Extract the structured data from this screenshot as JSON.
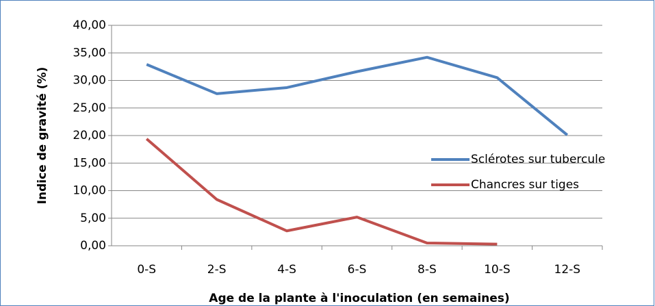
{
  "chart_data": {
    "type": "line",
    "x_label": "Age de la plante à l'inoculation (en semaines)",
    "y_label": "Indice de gravité (%)",
    "categories": [
      "0-S",
      "2-S",
      "4-S",
      "6-S",
      "8-S",
      "10-S",
      "12-S"
    ],
    "series": [
      {
        "name": "Sclérotes sur tubercule",
        "color": "#4f81bd",
        "values": [
          32.9,
          27.6,
          28.7,
          31.6,
          34.2,
          30.5,
          20.1
        ]
      },
      {
        "name": "Chancres sur tiges",
        "color": "#c0504d",
        "values": [
          19.4,
          8.4,
          2.7,
          5.2,
          0.5,
          0.3,
          null
        ]
      }
    ],
    "ylim": [
      0,
      40
    ],
    "yticks": [
      {
        "value": 0,
        "label": "0,00"
      },
      {
        "value": 5,
        "label": "5,00"
      },
      {
        "value": 10,
        "label": "10,00"
      },
      {
        "value": 15,
        "label": "15,00"
      },
      {
        "value": 20,
        "label": "20,00"
      },
      {
        "value": 25,
        "label": "25,00"
      },
      {
        "value": 30,
        "label": "30,00"
      },
      {
        "value": 35,
        "label": "35,00"
      },
      {
        "value": 40,
        "label": "40,00"
      }
    ],
    "grid": true
  }
}
